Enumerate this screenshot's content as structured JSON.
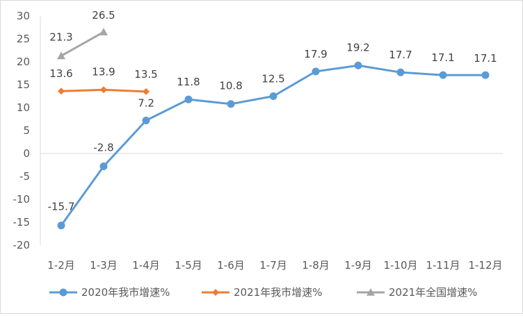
{
  "chart_data": {
    "type": "line",
    "categories": [
      "1-2月",
      "1-3月",
      "1-4月",
      "1-5月",
      "1-6月",
      "1-7月",
      "1-8月",
      "1-9月",
      "1-10月",
      "1-11月",
      "1-12月"
    ],
    "series": [
      {
        "name": "2020年我市增速%",
        "color": "#5b9bd5",
        "marker": "circle",
        "values": [
          -15.7,
          -2.8,
          7.2,
          11.8,
          10.8,
          12.5,
          17.9,
          19.2,
          17.7,
          17.1,
          17.1
        ],
        "labels": [
          "-15.7",
          "-2.8",
          "7.2",
          "11.8",
          "10.8",
          "12.5",
          "17.9",
          "19.2",
          "17.7",
          "17.1",
          "17.1"
        ]
      },
      {
        "name": "2021年我市增速%",
        "color": "#ed7d31",
        "marker": "diamond",
        "values": [
          13.6,
          13.9,
          13.5,
          null,
          null,
          null,
          null,
          null,
          null,
          null,
          null
        ],
        "labels": [
          "13.6",
          "13.9",
          "13.5"
        ]
      },
      {
        "name": "2021年全国增速%",
        "color": "#a5a5a5",
        "marker": "triangle",
        "values": [
          21.3,
          26.5,
          null,
          null,
          null,
          null,
          null,
          null,
          null,
          null,
          null
        ],
        "labels": [
          "21.3",
          "26.5"
        ]
      }
    ],
    "ylim": [
      -20,
      30
    ],
    "yticks": [
      "30",
      "25",
      "20",
      "15",
      "10",
      "5",
      "0",
      "-5",
      "-10",
      "-15",
      "-20"
    ],
    "grid": false,
    "legend": "bottom"
  }
}
